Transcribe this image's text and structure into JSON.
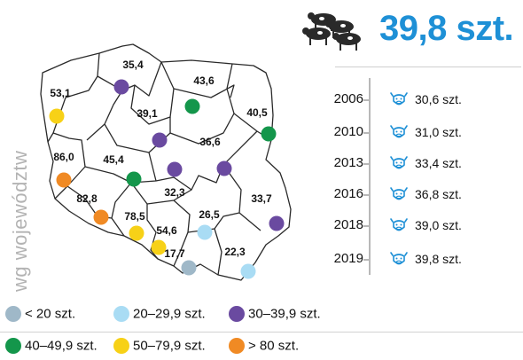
{
  "vertical_label": "wg województw",
  "header": {
    "value": "39,8 szt.",
    "icon": "cows-icon"
  },
  "colors": {
    "lt20": "#9fb8c8",
    "c20_29": "#a9dcf4",
    "c30_39": "#6a4aa0",
    "c40_49": "#14964b",
    "c50_79": "#f7d117",
    "gt80": "#f08a24",
    "accent": "#1e90d6",
    "map_stroke": "#2a2a2a"
  },
  "regions": [
    {
      "name": "zachodniopomorskie",
      "value": "53,1",
      "class": "c50_79"
    },
    {
      "name": "pomorskie",
      "value": "35,4",
      "class": "c30_39"
    },
    {
      "name": "warmińsko-mazurskie",
      "value": "43,6",
      "class": "c40_49"
    },
    {
      "name": "podlaskie",
      "value": "40,5",
      "class": "c40_49"
    },
    {
      "name": "kujawsko-pomorskie",
      "value": "39,1",
      "class": "c30_39"
    },
    {
      "name": "mazowieckie",
      "value": "36,6",
      "class": "c30_39"
    },
    {
      "name": "lubuskie",
      "value": "86,0",
      "class": "gt80"
    },
    {
      "name": "wielkopolskie",
      "value": "45,4",
      "class": "c40_49"
    },
    {
      "name": "łódzkie",
      "value": "32,3",
      "class": "c30_39"
    },
    {
      "name": "lubelskie",
      "value": "33,7",
      "class": "c30_39"
    },
    {
      "name": "dolnośląskie",
      "value": "82,8",
      "class": "gt80"
    },
    {
      "name": "opolskie",
      "value": "78,5",
      "class": "c50_79"
    },
    {
      "name": "śląskie",
      "value": "54,6",
      "class": "c50_79"
    },
    {
      "name": "świętokrzyskie",
      "value": "26,5",
      "class": "c20_29"
    },
    {
      "name": "małopolskie",
      "value": "17,7",
      "class": "lt20"
    },
    {
      "name": "podkarpackie",
      "value": "22,3",
      "class": "c20_29"
    }
  ],
  "timeline": [
    {
      "year": "2006",
      "value": "30,6 szt."
    },
    {
      "year": "2010",
      "value": "31,0 szt."
    },
    {
      "year": "2013",
      "value": "33,4 szt."
    },
    {
      "year": "2016",
      "value": "36,8 szt."
    },
    {
      "year": "2018",
      "value": "39,0 szt."
    },
    {
      "year": "2019",
      "value": "39,8 szt."
    }
  ],
  "legend": [
    {
      "label": "< 20 szt.",
      "class": "lt20"
    },
    {
      "label": "20–29,9 szt.",
      "class": "c20_29"
    },
    {
      "label": "30–39,9 szt.",
      "class": "c30_39"
    },
    {
      "label": "40–49,9 szt.",
      "class": "c40_49"
    },
    {
      "label": "50–79,9 szt.",
      "class": "c50_79"
    },
    {
      "label": "> 80 szt.",
      "class": "gt80"
    }
  ]
}
